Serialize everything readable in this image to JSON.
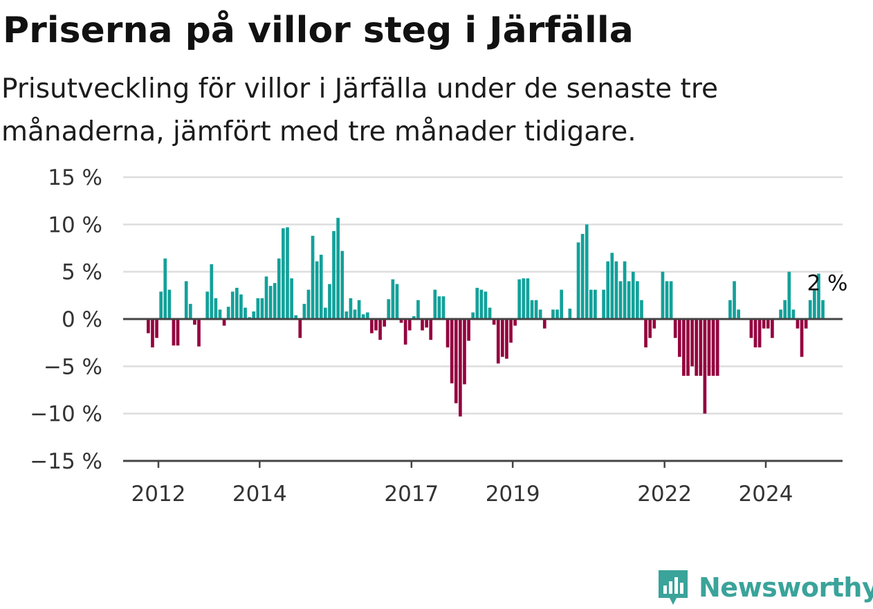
{
  "header": {
    "title": "Priserna på villor steg i Järfälla",
    "subtitle": "Prisutveckling för villor i Järfälla under de senaste tre månaderna, jämfört med tre månader tidigare."
  },
  "brand": {
    "name": "Newsworthy",
    "color": "#3aa39a",
    "icon": "newsworthy-bar-chart-icon"
  },
  "chart_data": {
    "type": "bar",
    "title": "",
    "xlabel": "",
    "ylabel": "",
    "ylim": [
      -15,
      15
    ],
    "y_ticks": [
      15,
      10,
      5,
      0,
      -5,
      -10,
      -15
    ],
    "y_tick_labels": [
      "15 %",
      "10 %",
      "5 %",
      "0 %",
      "−5 %",
      "−10 %",
      "−15 %"
    ],
    "x_ticks": [
      2012,
      2014,
      2017,
      2019,
      2022,
      2024
    ],
    "x_tick_labels": [
      "2012",
      "2014",
      "2017",
      "2019",
      "2022",
      "2024"
    ],
    "x_start": 2011.8,
    "x_step_years": 0.0833,
    "grid": true,
    "colors": {
      "positive": "#13a19a",
      "negative": "#94043f",
      "grid": "#dddddd",
      "axis": "#444444"
    },
    "end_label": "2 %",
    "values": [
      -1.5,
      -3,
      -2,
      2.9,
      6.4,
      3.1,
      -2.8,
      -2.8,
      null,
      4,
      1.6,
      -0.6,
      -2.9,
      null,
      2.9,
      5.8,
      2.2,
      1,
      -0.7,
      1.3,
      2.9,
      3.3,
      2.6,
      1.2,
      0.2,
      0.8,
      2.2,
      2.2,
      4.5,
      3.5,
      3.8,
      6.4,
      9.6,
      9.7,
      4.3,
      0.4,
      -2,
      1.6,
      3.1,
      8.8,
      6.1,
      6.8,
      1.2,
      3.7,
      9.3,
      10.7,
      7.2,
      0.8,
      2.2,
      1,
      2,
      0.5,
      0.7,
      -1.5,
      -1.2,
      -2.2,
      -0.8,
      2.1,
      4.2,
      3.7,
      -0.4,
      -2.7,
      -1.2,
      0.3,
      2,
      -1.2,
      -0.9,
      -2.2,
      3.1,
      2.4,
      2.4,
      -3,
      -6.8,
      -8.9,
      -10.3,
      -6.9,
      -2.3,
      0.7,
      3.3,
      3.1,
      2.9,
      1.2,
      -0.6,
      -4.7,
      -4,
      -4.2,
      -2.5,
      -0.7,
      4.2,
      4.3,
      4.3,
      2,
      2,
      1,
      -1,
      null,
      1,
      1,
      3.1,
      null,
      1.1,
      null,
      8.1,
      9,
      10,
      3.1,
      3.1,
      null,
      3.1,
      6.1,
      7,
      6.1,
      4,
      6.1,
      4,
      5,
      4,
      2,
      -3,
      -2,
      -1,
      null,
      5,
      4,
      4,
      -2,
      -4,
      -6,
      -6,
      -5,
      -6,
      -6,
      -10,
      -6,
      -6,
      -6,
      null,
      null,
      2,
      4,
      1,
      null,
      null,
      -2,
      -3,
      -3,
      -1,
      -1,
      -2,
      null,
      1,
      2,
      5,
      1,
      -1,
      -4,
      -1,
      2,
      3.2,
      4.8,
      2
    ]
  }
}
